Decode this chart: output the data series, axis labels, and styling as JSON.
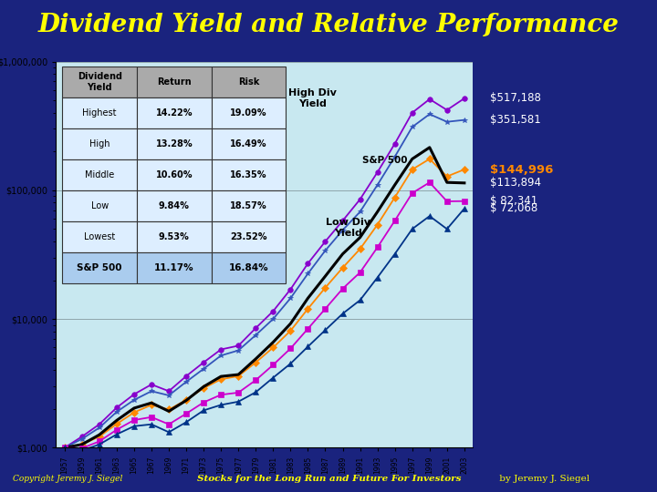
{
  "title": "Dividend Yield and Relative Performance",
  "title_color": "#FFFF00",
  "title_fontsize": 20,
  "bg_color": "#1a237e",
  "chart_bg": "#c8e8f0",
  "footer_left": "Copyright Jeremy J. Siegel",
  "footer_right_italic": "Stocks for the Long Run and Future For Investors",
  "footer_right_normal": " by Jeremy J. Siegel",
  "footer_color": "#FFFF00",
  "years": [
    1957,
    1959,
    1961,
    1963,
    1965,
    1967,
    1969,
    1971,
    1973,
    1975,
    1977,
    1979,
    1981,
    1983,
    1985,
    1987,
    1989,
    1991,
    1993,
    1995,
    1997,
    1999,
    2001,
    2003
  ],
  "highest": [
    1000,
    1220,
    1520,
    2050,
    2600,
    3100,
    2750,
    3600,
    4600,
    5800,
    6200,
    8500,
    11500,
    17000,
    27000,
    40000,
    58000,
    85000,
    138000,
    230000,
    400000,
    510000,
    420000,
    517188
  ],
  "high": [
    1000,
    1170,
    1430,
    1900,
    2350,
    2750,
    2550,
    3250,
    4100,
    5200,
    5700,
    7500,
    10000,
    14500,
    22500,
    34000,
    49000,
    68000,
    110000,
    182000,
    310000,
    390000,
    340000,
    351581
  ],
  "middle": [
    1000,
    1060,
    1220,
    1530,
    1880,
    2150,
    1980,
    2350,
    2900,
    3400,
    3600,
    4600,
    6000,
    8100,
    12000,
    17500,
    25000,
    35000,
    54000,
    88000,
    145000,
    175000,
    128000,
    144996
  ],
  "sp500": [
    1000,
    1060,
    1260,
    1630,
    2030,
    2230,
    1920,
    2330,
    2980,
    3580,
    3700,
    4900,
    6600,
    9200,
    14500,
    21500,
    32000,
    43000,
    68000,
    110000,
    175000,
    215000,
    115000,
    113894
  ],
  "low": [
    1000,
    990,
    1120,
    1380,
    1640,
    1730,
    1520,
    1840,
    2250,
    2580,
    2680,
    3350,
    4400,
    5900,
    8400,
    12000,
    17200,
    23000,
    36000,
    58000,
    95000,
    115000,
    82000,
    82341
  ],
  "lowest": [
    1000,
    950,
    1060,
    1270,
    1470,
    1520,
    1320,
    1580,
    1950,
    2150,
    2280,
    2700,
    3500,
    4500,
    6100,
    8200,
    11000,
    14000,
    21000,
    32000,
    50000,
    63000,
    50000,
    72068
  ],
  "colors": {
    "highest": "#8800cc",
    "high": "#3355bb",
    "middle": "#ff8800",
    "sp500": "#000000",
    "low": "#cc00cc",
    "lowest": "#003388"
  },
  "markers": {
    "highest": "o",
    "high": "*",
    "middle": "D",
    "sp500": "None",
    "low": "s",
    "lowest": "^"
  },
  "end_labels": {
    "highest": "$517,188",
    "high": "$351,581",
    "middle": "$144,996",
    "sp500": "$113,894",
    "low": "$ 82,341",
    "lowest": "$ 72,068"
  },
  "end_label_colors": {
    "highest": "#FFFFFF",
    "high": "#FFFFFF",
    "middle": "#FF8800",
    "sp500": "#FFFFFF",
    "low": "#FFFFFF",
    "lowest": "#FFFFFF"
  },
  "table_header": [
    "Dividend\nYield",
    "Return",
    "Risk"
  ],
  "table_rows": [
    [
      "Highest",
      "14.22%",
      "19.09%"
    ],
    [
      "High",
      "13.28%",
      "16.49%"
    ],
    [
      "Middle",
      "10.60%",
      "16.35%"
    ],
    [
      "Low",
      "9.84%",
      "18.57%"
    ],
    [
      "Lowest",
      "9.53%",
      "23.52%"
    ],
    [
      "S&P 500",
      "11.17%",
      "16.84%"
    ]
  ],
  "annotation_high_div": "High Div\nYield",
  "annotation_low_div": "Low Div\nYield",
  "annotation_sp500": "S&P 500",
  "gold_line_color": "#FFD700",
  "ylim_log": [
    1000,
    1000000
  ],
  "yticks": [
    1000,
    10000,
    100000,
    1000000
  ],
  "ytick_labels": [
    "$1,000",
    "$10,000",
    "$100,000",
    "$1,000,000"
  ]
}
